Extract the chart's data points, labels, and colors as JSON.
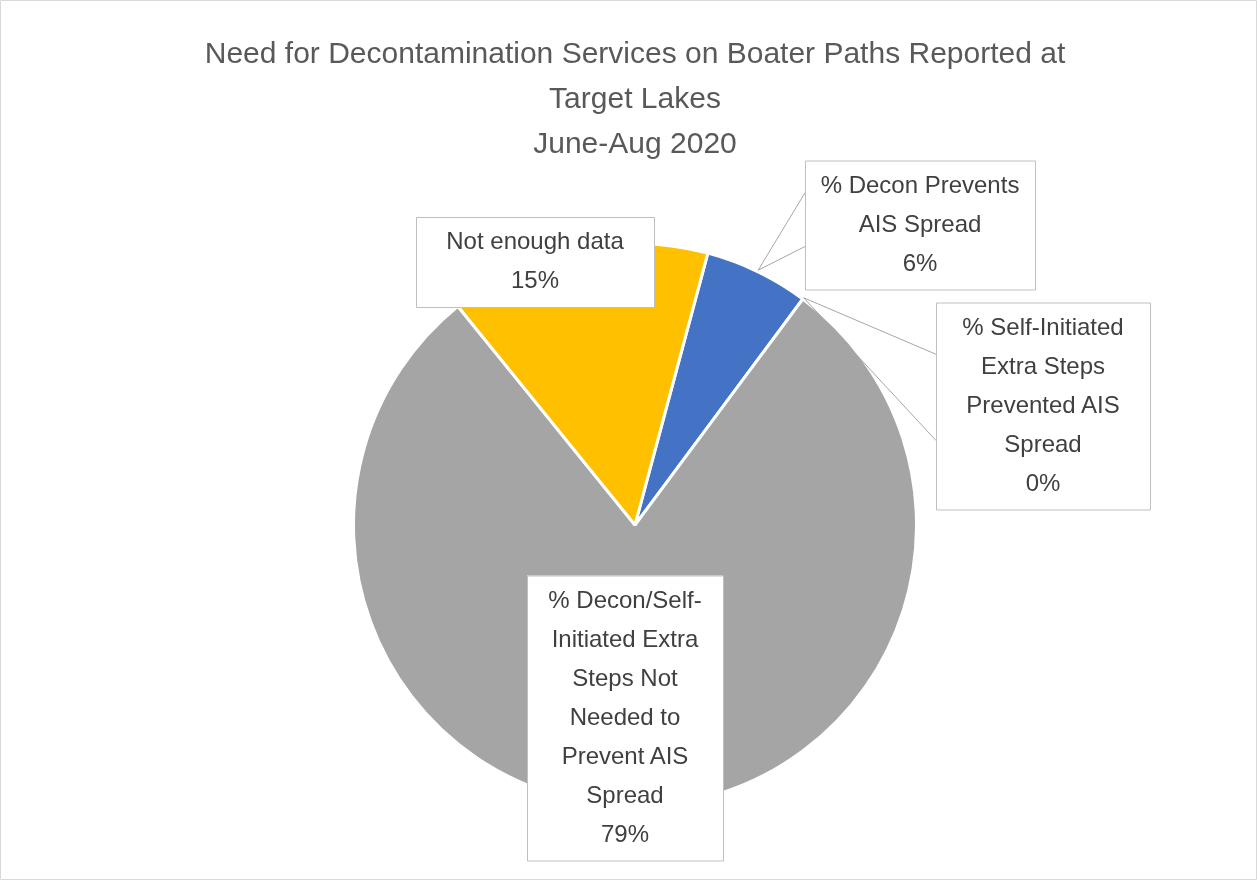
{
  "chart_data": {
    "type": "pie",
    "title": "Need for Decontamination Services on Boater Paths Reported at Target Lakes",
    "subtitle": "June-Aug 2020",
    "categories": [
      "% Decon Prevents AIS Spread",
      "% Self-Initiated Extra Steps Prevented AIS Spread",
      "% Decon/Self-Initiated Extra Steps Not Needed to Prevent AIS Spread",
      "Not enough data"
    ],
    "values": [
      6,
      0,
      79,
      15
    ],
    "value_labels": [
      "6%",
      "0%",
      "79%",
      "15%"
    ],
    "colors": [
      "#4472c4",
      "#ed7d31",
      "#a5a5a5",
      "#ffc000"
    ],
    "legend": false
  }
}
